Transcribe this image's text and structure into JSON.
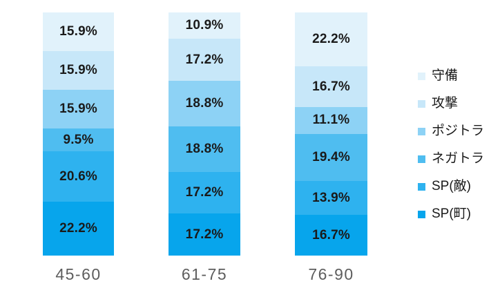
{
  "colors": {
    "background": "#FFFFFF",
    "data_label": "#1A1A1A",
    "category_label": "#5D5D5D",
    "legend_text": "#1A1A1A"
  },
  "chart_data": {
    "type": "bar",
    "subtype": "100-percent-stacked-column",
    "orientation": "vertical",
    "title": "",
    "xlabel": "",
    "ylabel": "",
    "axes_visible": false,
    "grid": false,
    "legend_position": "right",
    "value_format": "percent-one-decimal",
    "categories": [
      "45-60",
      "61-75",
      "76-90"
    ],
    "stack_order_top_to_bottom": [
      "守備",
      "攻撃",
      "ポジトラ",
      "ネガトラ",
      "SP(敵)",
      "SP(町)"
    ],
    "series": [
      {
        "name": "守備",
        "color": "#E1F2FB",
        "values": [
          15.9,
          10.9,
          22.2
        ],
        "labels": [
          "15.9%",
          "10.9%",
          "22.2%"
        ]
      },
      {
        "name": "攻撃",
        "color": "#C7E7F9",
        "values": [
          15.9,
          17.2,
          16.7
        ],
        "labels": [
          "15.9%",
          "17.2%",
          "16.7%"
        ]
      },
      {
        "name": "ポジトラ",
        "color": "#8DD2F5",
        "values": [
          15.9,
          18.8,
          11.1
        ],
        "labels": [
          "15.9%",
          "18.8%",
          "11.1%"
        ]
      },
      {
        "name": "ネガトラ",
        "color": "#4FBDF0",
        "values": [
          9.5,
          18.8,
          19.4
        ],
        "labels": [
          "9.5%",
          "18.8%",
          "19.4%"
        ]
      },
      {
        "name": "SP(敵)",
        "color": "#2EB2EF",
        "values": [
          20.6,
          17.2,
          13.9
        ],
        "labels": [
          "20.6%",
          "17.2%",
          "13.9%"
        ]
      },
      {
        "name": "SP(町)",
        "color": "#07A5EC",
        "values": [
          22.2,
          17.2,
          16.7
        ],
        "labels": [
          "22.2%",
          "17.2%",
          "16.7%"
        ]
      }
    ]
  }
}
